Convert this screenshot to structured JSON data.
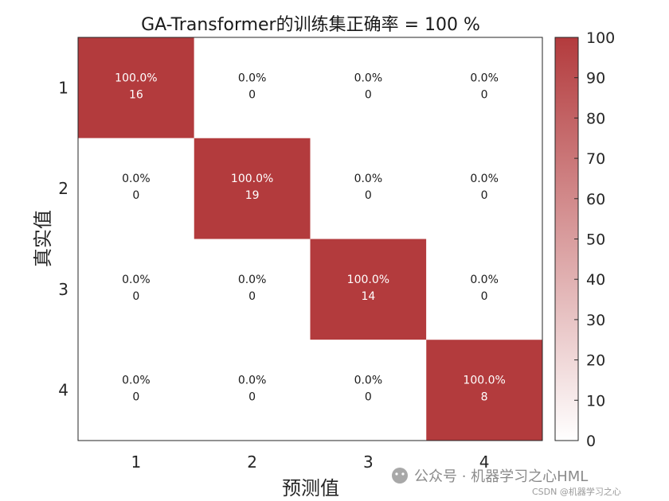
{
  "chart_data": {
    "type": "heatmap",
    "title": "GA-Transformer的训练集正确率 = 100 %",
    "xlabel": "预测值",
    "ylabel": "真实值",
    "x_categories": [
      "1",
      "2",
      "3",
      "4"
    ],
    "y_categories": [
      "1",
      "2",
      "3",
      "4"
    ],
    "percent_matrix": [
      [
        100,
        0,
        0,
        0
      ],
      [
        0,
        100,
        0,
        0
      ],
      [
        0,
        0,
        100,
        0
      ],
      [
        0,
        0,
        0,
        100
      ]
    ],
    "cell_labels": [
      [
        {
          "pct": "100.0%",
          "count": "16"
        },
        {
          "pct": "0.0%",
          "count": "0"
        },
        {
          "pct": "0.0%",
          "count": "0"
        },
        {
          "pct": "0.0%",
          "count": "0"
        }
      ],
      [
        {
          "pct": "0.0%",
          "count": "0"
        },
        {
          "pct": "100.0%",
          "count": "19"
        },
        {
          "pct": "0.0%",
          "count": "0"
        },
        {
          "pct": "0.0%",
          "count": "0"
        }
      ],
      [
        {
          "pct": "0.0%",
          "count": "0"
        },
        {
          "pct": "0.0%",
          "count": "0"
        },
        {
          "pct": "100.0%",
          "count": "14"
        },
        {
          "pct": "0.0%",
          "count": "0"
        }
      ],
      [
        {
          "pct": "0.0%",
          "count": "0"
        },
        {
          "pct": "0.0%",
          "count": "0"
        },
        {
          "pct": "0.0%",
          "count": "0"
        },
        {
          "pct": "100.0%",
          "count": "8"
        }
      ]
    ],
    "colorbar": {
      "range": [
        0,
        100
      ],
      "ticks": [
        "0",
        "10",
        "20",
        "30",
        "40",
        "50",
        "60",
        "70",
        "80",
        "90",
        "100"
      ],
      "color_low": "#ffffff",
      "color_high": "#b33b3d"
    },
    "grid": false,
    "legend": "colorbar-right"
  },
  "watermark": {
    "main": "公众号 · 机器学习之心HML",
    "sub": "CSDN @机器学习之心"
  }
}
